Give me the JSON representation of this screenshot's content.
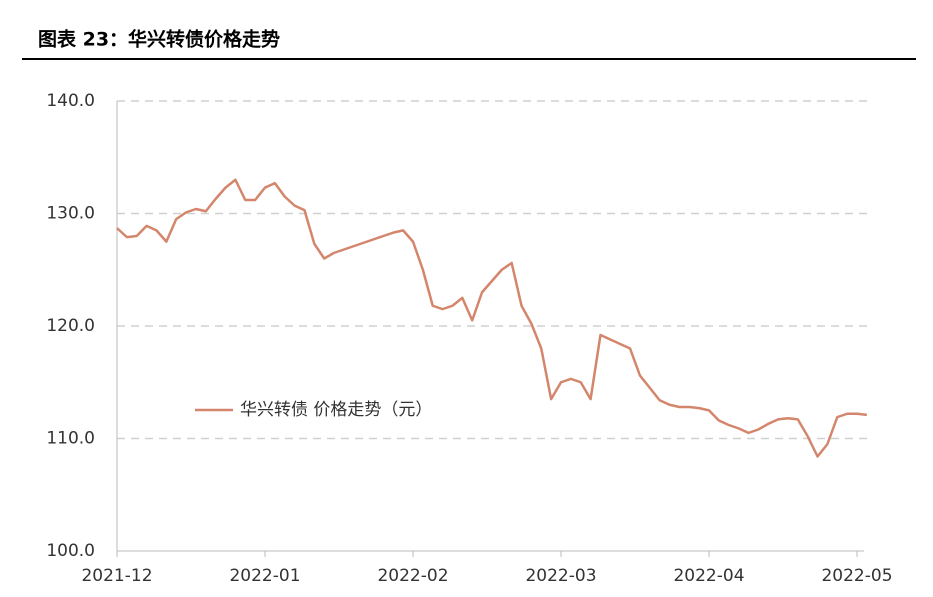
{
  "chart_data": {
    "type": "line",
    "title": "图表 23：华兴转债价格走势",
    "categories": [
      "2021-12",
      null,
      null,
      null,
      null,
      null,
      null,
      null,
      null,
      null,
      null,
      null,
      null,
      null,
      null,
      "2022-01",
      null,
      null,
      null,
      null,
      null,
      null,
      null,
      null,
      null,
      null,
      null,
      null,
      null,
      null,
      "2022-02",
      null,
      null,
      null,
      null,
      null,
      null,
      null,
      null,
      null,
      null,
      null,
      null,
      null,
      null,
      "2022-03",
      null,
      null,
      null,
      null,
      null,
      null,
      null,
      null,
      null,
      null,
      null,
      null,
      null,
      null,
      "2022-04",
      null,
      null,
      null,
      null,
      null,
      null,
      null,
      null,
      null,
      null,
      null,
      null,
      null,
      null,
      "2022-05",
      null
    ],
    "series": [
      {
        "name": "华兴转债 价格走势（元）",
        "color": "#d4866c",
        "values": [
          128.7,
          127.9,
          128.0,
          128.9,
          128.5,
          127.5,
          129.5,
          130.1,
          130.4,
          130.2,
          131.3,
          132.3,
          133.0,
          131.2,
          131.2,
          132.3,
          132.7,
          131.5,
          130.7,
          130.3,
          127.3,
          126.0,
          126.5,
          126.8,
          127.1,
          127.4,
          127.7,
          128.0,
          128.3,
          128.5,
          127.5,
          125.0,
          121.8,
          121.5,
          121.8,
          122.5,
          120.5,
          123.0,
          124.0,
          125.0,
          125.6,
          121.8,
          120.2,
          118.0,
          113.5,
          115.0,
          115.3,
          115.0,
          113.5,
          119.2,
          118.8,
          118.4,
          118.0,
          115.6,
          114.5,
          113.4,
          113.0,
          112.8,
          112.8,
          112.7,
          112.5,
          111.6,
          111.2,
          110.9,
          110.5,
          110.8,
          111.3,
          111.7,
          111.8,
          111.7,
          110.2,
          108.4,
          109.5,
          111.9,
          112.2,
          112.2,
          112.1
        ]
      }
    ],
    "ylim": [
      100,
      140
    ],
    "yticks": [
      {
        "value": 100,
        "label": "100.0"
      },
      {
        "value": 110,
        "label": "110.0"
      },
      {
        "value": 120,
        "label": "120.0"
      },
      {
        "value": 130,
        "label": "130.0"
      },
      {
        "value": 140,
        "label": "140.0"
      }
    ],
    "grid": true,
    "legend": "center-left"
  }
}
